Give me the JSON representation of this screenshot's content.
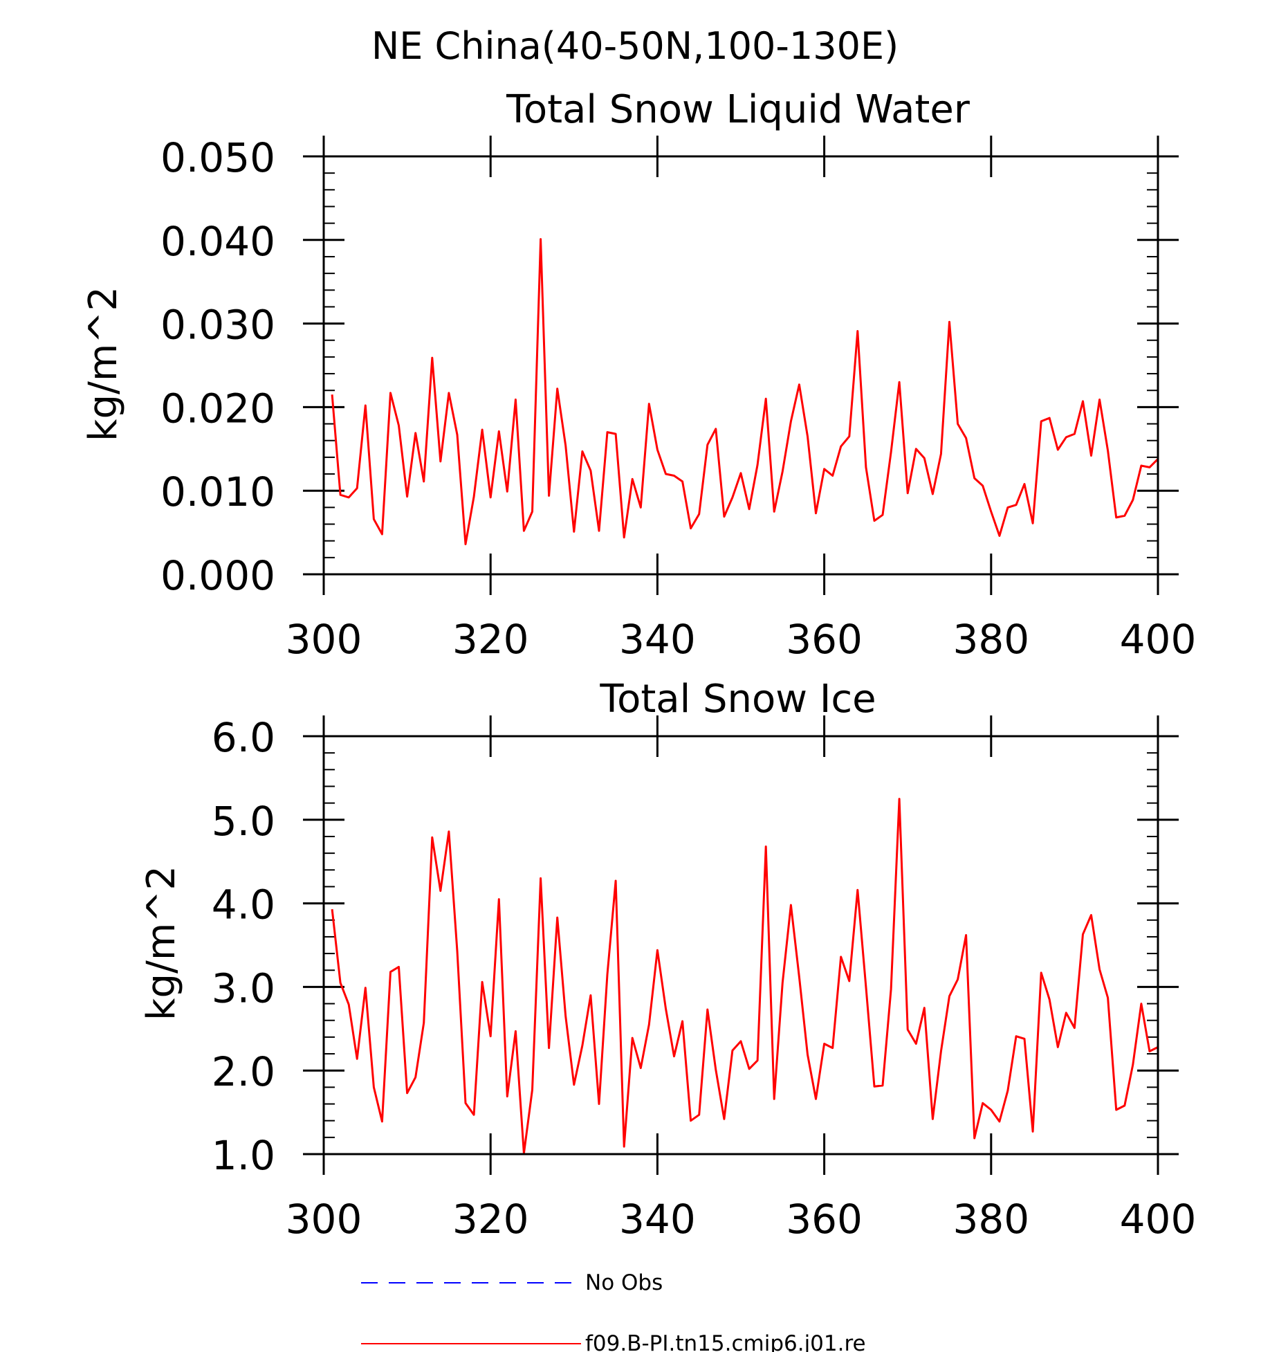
{
  "figure": {
    "title": "NE China(40-50N,100-130E)"
  },
  "legend": {
    "items": [
      {
        "label": "No Obs",
        "color": "#0000ff",
        "dash": true
      },
      {
        "label": "f09.B-PI.tn15.cmip6.j01.re",
        "color": "#ff0000",
        "dash": false
      }
    ]
  },
  "chart_data": [
    {
      "type": "line",
      "title": "Total Snow Liquid Water",
      "ylabel": "kg/m^2",
      "xlabel": "",
      "xlim": [
        300,
        400
      ],
      "ylim": [
        0.0,
        0.05
      ],
      "xticks": [
        "300",
        "320",
        "340",
        "360",
        "380",
        "400"
      ],
      "yticks": [
        "0.000",
        "0.010",
        "0.020",
        "0.030",
        "0.040",
        "0.050"
      ],
      "x_start": 301,
      "x_step": 1,
      "series": [
        {
          "name": "f09.B-PI.tn15.cmip6.j01.re",
          "color": "#ff0000",
          "values": [
            0.0215,
            0.0095,
            0.0092,
            0.0103,
            0.0202,
            0.0066,
            0.0048,
            0.0217,
            0.0178,
            0.0093,
            0.0169,
            0.0111,
            0.0259,
            0.0135,
            0.0217,
            0.0167,
            0.0036,
            0.0093,
            0.0173,
            0.0092,
            0.0171,
            0.0099,
            0.0209,
            0.0052,
            0.0075,
            0.0401,
            0.0094,
            0.0222,
            0.0154,
            0.0051,
            0.0147,
            0.0124,
            0.0052,
            0.017,
            0.0168,
            0.0044,
            0.0114,
            0.008,
            0.0204,
            0.0149,
            0.012,
            0.0118,
            0.0111,
            0.0055,
            0.0072,
            0.0155,
            0.0174,
            0.0069,
            0.0092,
            0.0121,
            0.0078,
            0.0131,
            0.021,
            0.0075,
            0.0123,
            0.0183,
            0.0227,
            0.0165,
            0.0073,
            0.0126,
            0.0118,
            0.0153,
            0.0165,
            0.0291,
            0.0128,
            0.0064,
            0.0071,
            0.0146,
            0.023,
            0.0097,
            0.015,
            0.0139,
            0.0096,
            0.0144,
            0.0302,
            0.018,
            0.0163,
            0.0115,
            0.0106,
            0.0075,
            0.0046,
            0.008,
            0.0083,
            0.0108,
            0.0061,
            0.0183,
            0.0187,
            0.0149,
            0.0164,
            0.0168,
            0.0207,
            0.0142,
            0.0209,
            0.0148,
            0.0068,
            0.007,
            0.0089,
            0.013,
            0.0128,
            0.0138
          ]
        }
      ]
    },
    {
      "type": "line",
      "title": "Total Snow Ice",
      "ylabel": "kg/m^2",
      "xlabel": "",
      "xlim": [
        300,
        400
      ],
      "ylim": [
        1.0,
        6.0
      ],
      "xticks": [
        "300",
        "320",
        "340",
        "360",
        "380",
        "400"
      ],
      "yticks": [
        "1.0",
        "2.0",
        "3.0",
        "4.0",
        "5.0",
        "6.0"
      ],
      "x_start": 301,
      "x_step": 1,
      "series": [
        {
          "name": "f09.B-PI.tn15.cmip6.j01.re",
          "color": "#ff0000",
          "values": [
            3.93,
            3.05,
            2.79,
            2.14,
            2.99,
            1.8,
            1.39,
            3.18,
            3.24,
            1.73,
            1.92,
            2.57,
            4.79,
            4.15,
            4.86,
            3.43,
            1.61,
            1.47,
            3.06,
            2.41,
            4.05,
            1.69,
            2.47,
            1.01,
            1.77,
            4.3,
            2.27,
            3.83,
            2.65,
            1.83,
            2.3,
            2.9,
            1.6,
            3.15,
            4.27,
            1.09,
            2.39,
            2.03,
            2.55,
            3.44,
            2.74,
            2.17,
            2.59,
            1.4,
            1.47,
            2.73,
            2.01,
            1.42,
            2.24,
            2.35,
            2.02,
            2.12,
            4.68,
            1.66,
            3.05,
            3.98,
            3.12,
            2.19,
            1.66,
            2.32,
            2.27,
            3.36,
            3.07,
            4.16,
            3.0,
            1.81,
            1.82,
            2.97,
            5.25,
            2.49,
            2.32,
            2.75,
            1.42,
            2.23,
            2.89,
            3.09,
            3.62,
            1.19,
            1.61,
            1.53,
            1.39,
            1.76,
            2.41,
            2.38,
            1.27,
            3.17,
            2.85,
            2.28,
            2.69,
            2.51,
            3.63,
            3.86,
            3.21,
            2.87,
            1.53,
            1.58,
            2.07,
            2.8,
            2.23,
            2.28
          ]
        }
      ]
    }
  ]
}
